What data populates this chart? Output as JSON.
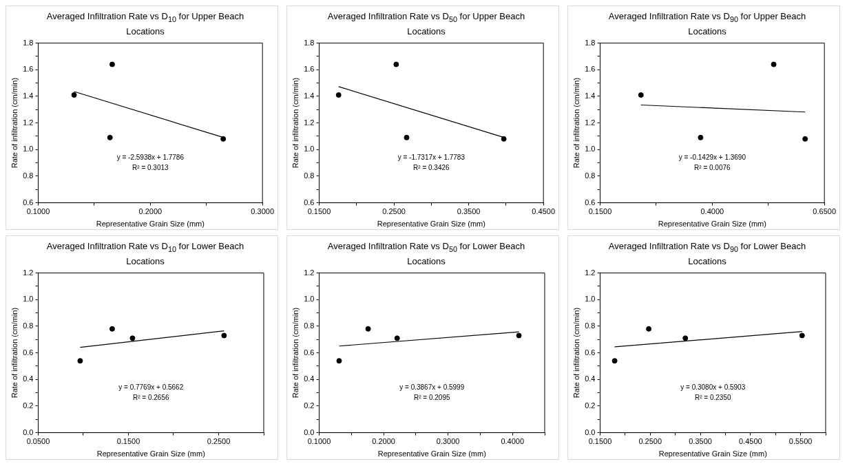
{
  "chart_data": [
    {
      "type": "scatter",
      "title": "Averaged Infiltration Rate vs D$_{10}$ for Upper Beach Locations",
      "xlabel": "Representative Grain Size (mm)",
      "ylabel": "Rate of infiltration (cm/min)",
      "xlim": [
        0.1,
        0.3
      ],
      "ylim": [
        0.6,
        1.8
      ],
      "xticks": [
        {
          "value": 0.1,
          "label": "0.1000"
        },
        {
          "value": 0.15,
          "label": null
        },
        {
          "value": 0.2,
          "label": "0.2000"
        },
        {
          "value": 0.25,
          "label": null
        },
        {
          "value": 0.3,
          "label": "0.3000"
        }
      ],
      "yticks": [
        0.6,
        {
          "value": 0.7,
          "label": null
        },
        0.8,
        {
          "value": 0.9,
          "label": null
        },
        {
          "value": 1,
          "label": "1.0"
        },
        {
          "value": 1.1,
          "label": null
        },
        1.2,
        {
          "value": 1.3,
          "label": null
        },
        1.4,
        {
          "value": 1.5,
          "label": null
        },
        1.6,
        {
          "value": 1.7,
          "label": null
        },
        1.8
      ],
      "series": [
        {
          "type": "scatter",
          "color": "#000000",
          "marker": "circle",
          "x": [
            0.132,
            0.166,
            0.164,
            0.265
          ],
          "values": [
            1.41,
            1.64,
            1.09,
            1.08
          ]
        },
        {
          "type": "line",
          "color": "#000000",
          "marker": "none",
          "x": [
            0.132,
            0.265
          ],
          "values": [
            1.436,
            1.091
          ]
        }
      ],
      "annotations": [
        "y = -2.5938x + 1.7786",
        "R² = 0.3013"
      ]
    },
    {
      "type": "scatter",
      "title": "Averaged Infiltration Rate vs D$_{50}$ for Upper Beach Locations",
      "xlabel": "Representative Grain Size (mm)",
      "ylabel": "Rate of infiltration (cm/min)",
      "xlim": [
        0.15,
        0.45
      ],
      "ylim": [
        0.6,
        1.8
      ],
      "xticks": [
        {
          "value": 0.15,
          "label": "0.1500"
        },
        {
          "value": 0.2,
          "label": null
        },
        {
          "value": 0.25,
          "label": "0.2500"
        },
        {
          "value": 0.3,
          "label": null
        },
        {
          "value": 0.35,
          "label": "0.3500"
        },
        {
          "value": 0.4,
          "label": null
        },
        {
          "value": 0.45,
          "label": "0.4500"
        }
      ],
      "yticks": [
        0.6,
        {
          "value": 0.7,
          "label": null
        },
        0.8,
        {
          "value": 0.9,
          "label": null
        },
        {
          "value": 1,
          "label": "1.0"
        },
        {
          "value": 1.1,
          "label": null
        },
        1.2,
        {
          "value": 1.3,
          "label": null
        },
        1.4,
        {
          "value": 1.5,
          "label": null
        },
        1.6,
        {
          "value": 1.7,
          "label": null
        },
        1.8
      ],
      "series": [
        {
          "type": "scatter",
          "color": "#000000",
          "marker": "circle",
          "x": [
            0.176,
            0.253,
            0.267,
            0.397
          ],
          "values": [
            1.41,
            1.64,
            1.09,
            1.08
          ]
        },
        {
          "type": "line",
          "color": "#000000",
          "marker": "none",
          "x": [
            0.176,
            0.397
          ],
          "values": [
            1.473,
            1.091
          ]
        }
      ],
      "annotations": [
        "y = -1.7317x + 1.7783",
        "R² = 0.3426"
      ]
    },
    {
      "type": "scatter",
      "title": "Averaged Infiltration Rate vs D$_{90}$ for Upper Beach Locations",
      "xlabel": "Representative Grain Size (mm)",
      "ylabel": "Rate of infiltration (cm/min)",
      "xlim": [
        0.15,
        0.65
      ],
      "ylim": [
        0.6,
        1.8
      ],
      "xticks": [
        {
          "value": 0.15,
          "label": "0.1500"
        },
        {
          "value": 0.275,
          "label": null
        },
        {
          "value": 0.4,
          "label": "0.4000"
        },
        {
          "value": 0.525,
          "label": null
        },
        {
          "value": 0.65,
          "label": "0.6500"
        }
      ],
      "yticks": [
        0.6,
        {
          "value": 0.7,
          "label": null
        },
        0.8,
        {
          "value": 0.9,
          "label": null
        },
        {
          "value": 1,
          "label": "1.0"
        },
        {
          "value": 1.1,
          "label": null
        },
        1.2,
        {
          "value": 1.3,
          "label": null
        },
        1.4,
        {
          "value": 1.5,
          "label": null
        },
        1.6,
        {
          "value": 1.7,
          "label": null
        },
        1.8
      ],
      "series": [
        {
          "type": "scatter",
          "color": "#000000",
          "marker": "circle",
          "x": [
            0.241,
            0.374,
            0.537,
            0.607
          ],
          "values": [
            1.41,
            1.09,
            1.64,
            1.08
          ]
        },
        {
          "type": "line",
          "color": "#000000",
          "marker": "none",
          "x": [
            0.241,
            0.607
          ],
          "values": [
            1.335,
            1.282
          ]
        }
      ],
      "annotations": [
        "y = -0.1429x + 1.3690",
        "R² = 0.0076"
      ]
    },
    {
      "type": "scatter",
      "title": "Averaged Infiltration Rate vs D$_{10}$ for Lower Beach Locations",
      "xlabel": "Representative Grain Size (mm)",
      "ylabel": "Rate of infiltration (cm/min)",
      "xlim": [
        0.05,
        0.3
      ],
      "ylim": [
        0,
        1.2
      ],
      "xticks": [
        {
          "value": 0.05,
          "label": "0.0500"
        },
        {
          "value": 0.1,
          "label": null
        },
        {
          "value": 0.15,
          "label": "0.1500"
        },
        {
          "value": 0.2,
          "label": null
        },
        {
          "value": 0.25,
          "label": "0.2500"
        },
        {
          "value": 0.3,
          "label": null
        }
      ],
      "yticks": [
        {
          "value": 0,
          "label": "0.0"
        },
        {
          "value": 0.1,
          "label": null
        },
        0.2,
        {
          "value": 0.3,
          "label": null
        },
        0.4,
        {
          "value": 0.5,
          "label": null
        },
        0.6,
        {
          "value": 0.7,
          "label": null
        },
        0.8,
        {
          "value": 0.9,
          "label": null
        },
        {
          "value": 1,
          "label": "1.0"
        },
        {
          "value": 1.1,
          "label": null
        },
        1.2
      ],
      "series": [
        {
          "type": "scatter",
          "color": "#000000",
          "marker": "circle",
          "x": [
            0.0965,
            0.132,
            0.1545,
            0.256
          ],
          "values": [
            0.54,
            0.78,
            0.71,
            0.73
          ]
        },
        {
          "type": "line",
          "color": "#000000",
          "marker": "none",
          "x": [
            0.0965,
            0.256
          ],
          "values": [
            0.641,
            0.765
          ]
        }
      ],
      "annotations": [
        "y = 0.7769x + 0.5662",
        "R² = 0.2656"
      ]
    },
    {
      "type": "scatter",
      "title": "Averaged Infiltration Rate vs D$_{50}$ for Lower Beach Locations",
      "xlabel": "Representative Grain Size (mm)",
      "ylabel": "Rate of infiltration (cm/min)",
      "xlim": [
        0.1,
        0.45
      ],
      "ylim": [
        0,
        1.2
      ],
      "xticks": [
        {
          "value": 0.1,
          "label": "0.1000"
        },
        {
          "value": 0.15,
          "label": null
        },
        {
          "value": 0.2,
          "label": "0.2000"
        },
        {
          "value": 0.25,
          "label": null
        },
        {
          "value": 0.3,
          "label": "0.3000"
        },
        {
          "value": 0.35,
          "label": null
        },
        {
          "value": 0.4,
          "label": "0.4000"
        },
        {
          "value": 0.45,
          "label": null
        }
      ],
      "yticks": [
        {
          "value": 0,
          "label": "0.0"
        },
        {
          "value": 0.1,
          "label": null
        },
        0.2,
        {
          "value": 0.3,
          "label": null
        },
        0.4,
        {
          "value": 0.5,
          "label": null
        },
        0.6,
        {
          "value": 0.7,
          "label": null
        },
        0.8,
        {
          "value": 0.9,
          "label": null
        },
        {
          "value": 1,
          "label": "1.0"
        },
        {
          "value": 1.1,
          "label": null
        },
        1.2
      ],
      "series": [
        {
          "type": "scatter",
          "color": "#000000",
          "marker": "circle",
          "x": [
            0.131,
            0.176,
            0.221,
            0.41
          ],
          "values": [
            0.54,
            0.78,
            0.71,
            0.73
          ]
        },
        {
          "type": "line",
          "color": "#000000",
          "marker": "none",
          "x": [
            0.131,
            0.41
          ],
          "values": [
            0.651,
            0.758
          ]
        }
      ],
      "annotations": [
        "y = 0.3867x + 0.5999",
        "R² = 0.2095"
      ]
    },
    {
      "type": "scatter",
      "title": "Averaged Infiltration Rate vs D$_{90}$ for Lower Beach Locations",
      "xlabel": "Representative Grain Size (mm)",
      "ylabel": "Rate of infiltration (cm/min)",
      "xlim": [
        0.15,
        0.6
      ],
      "ylim": [
        0,
        1.2
      ],
      "xticks": [
        {
          "value": 0.15,
          "label": "0.1500"
        },
        {
          "value": 0.2,
          "label": null
        },
        {
          "value": 0.25,
          "label": "0.2500"
        },
        {
          "value": 0.3,
          "label": null
        },
        {
          "value": 0.35,
          "label": "0.3500"
        },
        {
          "value": 0.4,
          "label": null
        },
        {
          "value": 0.45,
          "label": "0.4500"
        },
        {
          "value": 0.5,
          "label": null
        },
        {
          "value": 0.55,
          "label": "0.5500"
        },
        {
          "value": 0.6,
          "label": null
        }
      ],
      "yticks": [
        {
          "value": 0,
          "label": "0.0"
        },
        {
          "value": 0.1,
          "label": null
        },
        0.2,
        {
          "value": 0.3,
          "label": null
        },
        0.4,
        {
          "value": 0.5,
          "label": null
        },
        0.6,
        {
          "value": 0.7,
          "label": null
        },
        0.8,
        {
          "value": 0.9,
          "label": null
        },
        {
          "value": 1,
          "label": "1.0"
        },
        {
          "value": 1.1,
          "label": null
        },
        1.2
      ],
      "series": [
        {
          "type": "scatter",
          "color": "#000000",
          "marker": "circle",
          "x": [
            0.179,
            0.247,
            0.32,
            0.553
          ],
          "values": [
            0.54,
            0.78,
            0.71,
            0.73
          ]
        },
        {
          "type": "line",
          "color": "#000000",
          "marker": "none",
          "x": [
            0.179,
            0.553
          ],
          "values": [
            0.645,
            0.76
          ]
        }
      ],
      "annotations": [
        "y = 0.3080x + 0.5903",
        "R² = 0.2350"
      ]
    }
  ]
}
